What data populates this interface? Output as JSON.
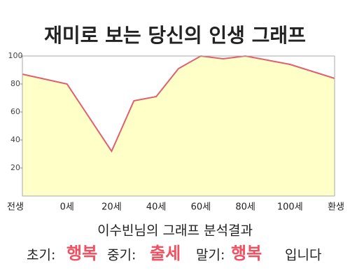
{
  "chart_data": {
    "type": "area",
    "title": "재미로 보는 당신의 인생 그래프",
    "categories": [
      "전생",
      null,
      "0세",
      null,
      "20세",
      null,
      "40세",
      null,
      "60세",
      null,
      "80세",
      null,
      "100세",
      null,
      "환생"
    ],
    "values": [
      87,
      83.5,
      80,
      56,
      32,
      68,
      71,
      91,
      100,
      98,
      100,
      97,
      94,
      89,
      84
    ],
    "color": "#e06070",
    "fill": "#ffffc8",
    "ylim": [
      0,
      100
    ],
    "yticks": [
      20,
      40,
      60,
      80,
      100
    ],
    "grid": false
  },
  "result": {
    "heading": "이수빈님의 그래프 분석결과",
    "early_label": "초기:",
    "early": "행복",
    "middle_label": "중기:",
    "middle": "출세",
    "late_label": "말기:",
    "late": "행복",
    "ending": "입니다"
  }
}
